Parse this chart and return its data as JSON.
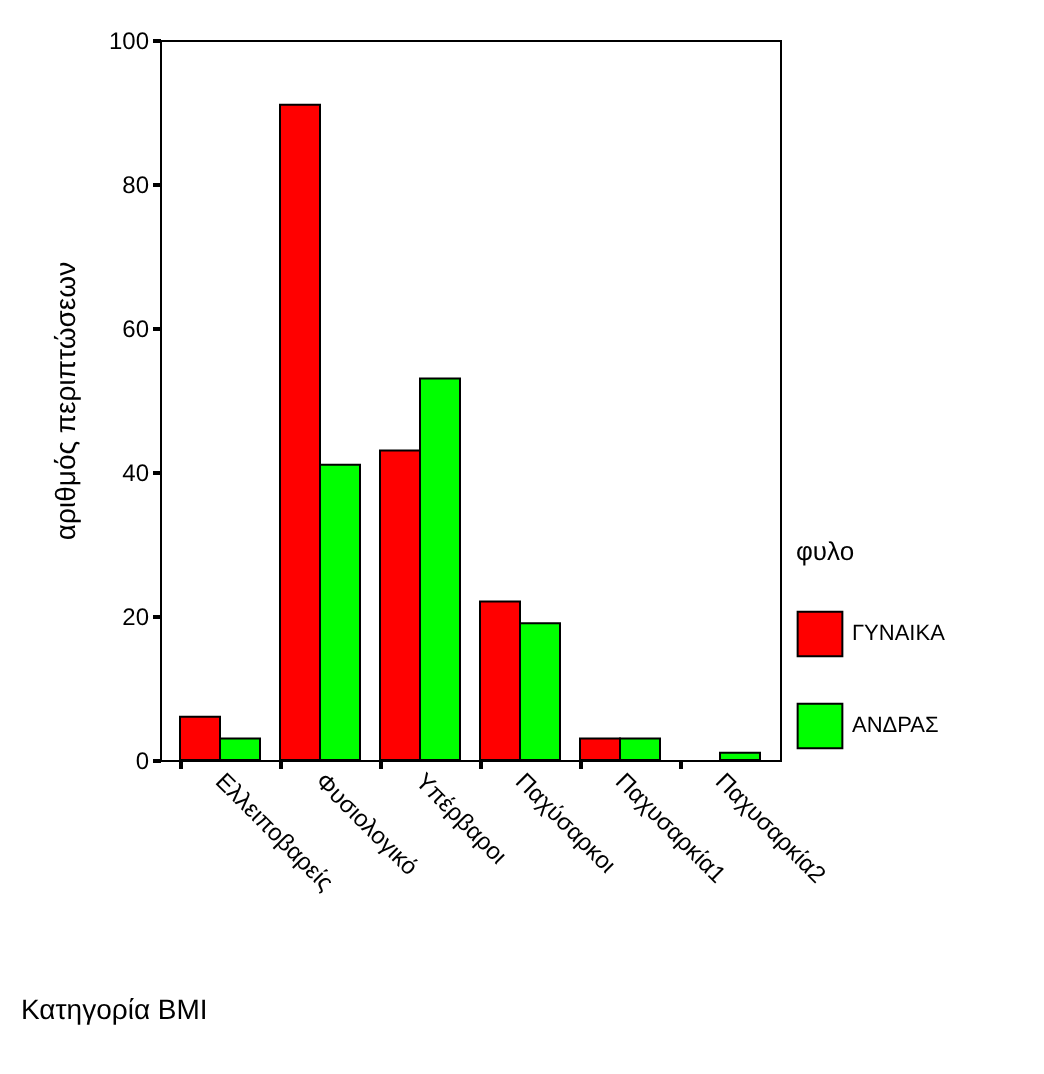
{
  "chart_data": {
    "type": "bar",
    "xlabel": "Κατηγορία BMI",
    "ylabel": "αριθμός περιπτώσεων",
    "legend_title": "φυλο",
    "legend": "right",
    "categories": [
      "Ελλειποβαρείς",
      "Φυσιολογικό",
      "Υπέρβαροι",
      "Παχύσαρκοι",
      "Παχυσαρκία1",
      "Παχυσαρκία2"
    ],
    "series": [
      {
        "name": "ΓΥΝΑΙΚΑ",
        "color": "#ff0000",
        "values": [
          6,
          91,
          43,
          22,
          3,
          null
        ]
      },
      {
        "name": "ΑΝΔΡΑΣ",
        "color": "#00ff00",
        "values": [
          3,
          41,
          53,
          19,
          3,
          1
        ]
      }
    ],
    "ylim": [
      0,
      100
    ],
    "yticks": [
      0,
      20,
      40,
      60,
      80,
      100
    ],
    "grid": false
  }
}
